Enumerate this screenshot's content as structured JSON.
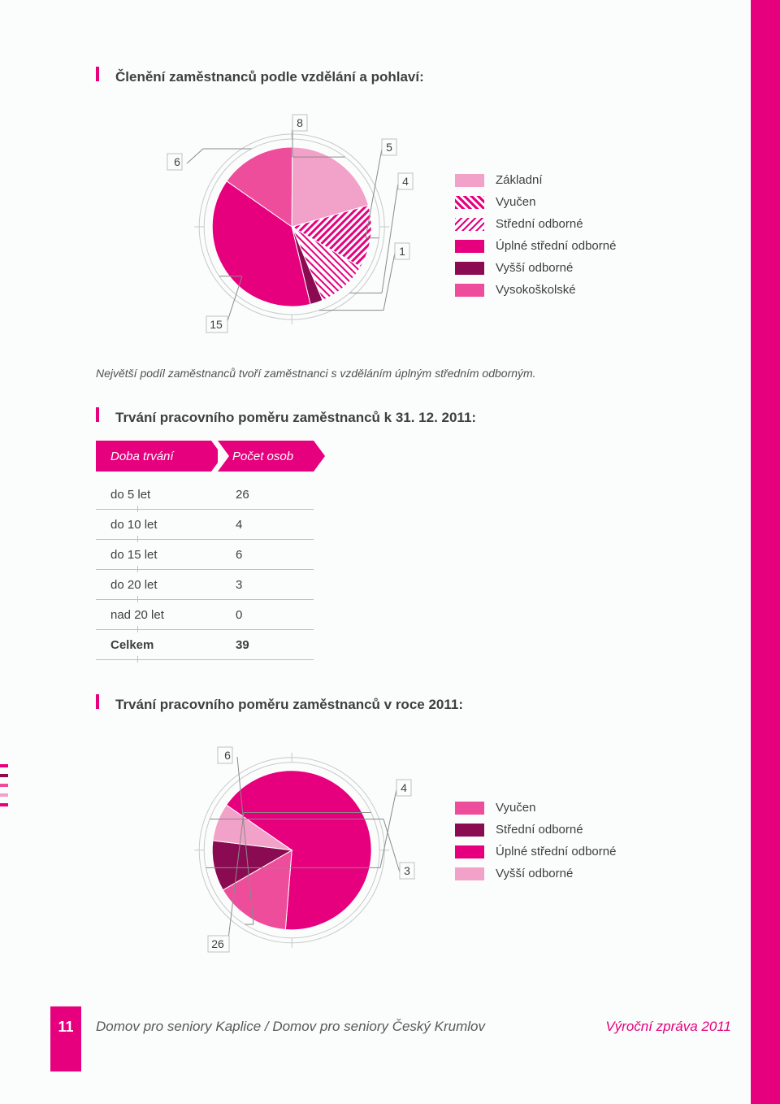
{
  "colors": {
    "brand": "#e6007e",
    "text": "#3f3f3f",
    "grid": "#c0c0c0",
    "bg": "#fbfcfc"
  },
  "section1": {
    "title": "Členění zaměstnanců podle vzdělání a pohlaví:",
    "chart": {
      "type": "pie",
      "values": [
        6,
        8,
        5,
        4,
        1,
        15
      ],
      "labels": [
        "6",
        "8",
        "5",
        "4",
        "1",
        "15"
      ],
      "slice_colors": [
        "#ee4d9b",
        "#f2a1c8",
        "#e6007e",
        "#e6007e",
        "#8a0b52",
        "#e6007e"
      ],
      "slice_patterns": [
        "solid",
        "solid",
        "hatch-diag",
        "hatch-dots",
        "solid",
        "solid"
      ],
      "ring_color": "#c9c9c9",
      "background": "#fbfcfc"
    },
    "legend": [
      {
        "label": "Základní",
        "swatch_fill": "#f2a1c8",
        "pattern": "solid"
      },
      {
        "label": "Vyučen",
        "swatch_fill": "#e6007e",
        "pattern": "hatch-diag"
      },
      {
        "label": "Střední odborné",
        "swatch_fill": "#e6007e",
        "pattern": "hatch-dots"
      },
      {
        "label": "Úplné střední odborné",
        "swatch_fill": "#e6007e",
        "pattern": "solid"
      },
      {
        "label": "Vyšší odborné",
        "swatch_fill": "#8a0b52",
        "pattern": "solid"
      },
      {
        "label": "Vysokoškolské",
        "swatch_fill": "#ee4d9b",
        "pattern": "solid"
      }
    ],
    "caption": "Největší podíl zaměstnanců tvoří zaměstnanci s vzděláním úplným středním odborným."
  },
  "section2": {
    "title": "Trvání pracovního poměru zaměstnanců k 31. 12. 2011:",
    "table": {
      "headers": [
        "Doba trvání",
        "Počet osob"
      ],
      "rows": [
        [
          "do 5 let",
          "26"
        ],
        [
          "do 10 let",
          "4"
        ],
        [
          "do 15 let",
          "6"
        ],
        [
          "do 20 let",
          "3"
        ],
        [
          "nad 20 let",
          "0"
        ]
      ],
      "total": [
        "Celkem",
        "39"
      ]
    }
  },
  "section3": {
    "title": "Trvání pracovního poměru zaměstnanců v roce 2011:",
    "chart": {
      "type": "pie",
      "values": [
        26,
        6,
        4,
        3
      ],
      "labels": [
        "26",
        "6",
        "4",
        "3"
      ],
      "slice_colors": [
        "#e6007e",
        "#ee4d9b",
        "#8a0b52",
        "#f2a1c8"
      ],
      "ring_color": "#c9c9c9"
    },
    "legend": [
      {
        "label": "Vyučen",
        "swatch_fill": "#ee4d9b"
      },
      {
        "label": "Střední odborné",
        "swatch_fill": "#8a0b52"
      },
      {
        "label": "Úplné střední odborné",
        "swatch_fill": "#e6007e"
      },
      {
        "label": "Vyšší odborné",
        "swatch_fill": "#f2a1c8"
      }
    ]
  },
  "left_tick_colors": [
    "#e6007e",
    "#8a0b52",
    "#ee4d9b",
    "#f2a1c8",
    "#e6007e"
  ],
  "footer": {
    "page_number": "11",
    "left": "Domov pro seniory Kaplice / Domov pro seniory Český Krumlov",
    "right": "Výroční zpráva 2011"
  }
}
